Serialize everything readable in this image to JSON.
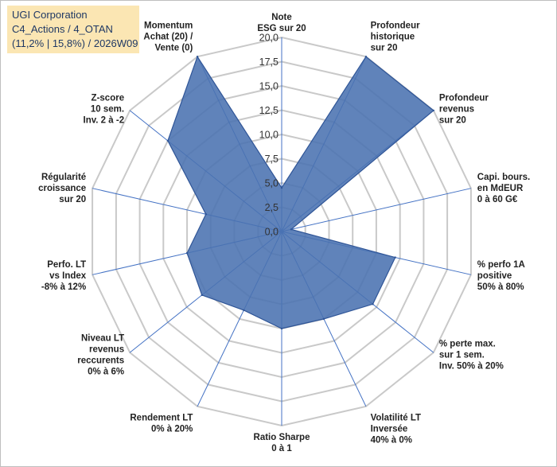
{
  "info": {
    "line1": "UGI Corporation",
    "line2": "C4_Actions / 4_OTAN",
    "line3": "(11,2% | 15,8%) / 2026W09"
  },
  "chart_data": {
    "type": "radar",
    "scale_min": 0,
    "scale_max": 20,
    "tick_step": 2.5,
    "tick_labels": [
      "0,0",
      "2,5",
      "5,0",
      "7,5",
      "10,0",
      "12,5",
      "15,0",
      "17,5",
      "20,0"
    ],
    "grid": true,
    "colors": {
      "fill": "#4a72b0",
      "stroke": "#2f5597",
      "grid": "#c9c9c9",
      "spoke": "#4472c4"
    },
    "axes": [
      {
        "label": [
          "Note",
          "ESG sur 20"
        ],
        "value": 4.5
      },
      {
        "label": [
          "Profondeur",
          "historique",
          "sur 20"
        ],
        "value": 20
      },
      {
        "label": [
          "Profondeur",
          "revenus",
          "sur 20"
        ],
        "value": 20
      },
      {
        "label": [
          "Capi. bours.",
          "en MdEUR",
          "0 à 60 G€"
        ],
        "value": 1.0
      },
      {
        "label": [
          "% perfo 1A",
          "positive",
          "50% à 80%"
        ],
        "value": 12
      },
      {
        "label": [
          "% perte max.",
          "sur 1 sem.",
          "Inv. 50% à 20%"
        ],
        "value": 12
      },
      {
        "label": [
          "Volatilité LT",
          "Inversée",
          "40% à 0%"
        ],
        "value": 10
      },
      {
        "label": [
          "Ratio Sharpe",
          "0 à 1"
        ],
        "value": 10
      },
      {
        "label": [
          "Rendement LT",
          "0% à 20%"
        ],
        "value": 9
      },
      {
        "label": [
          "Niveau LT",
          "revenus",
          "reccurents",
          "0% à 6%"
        ],
        "value": 10.5
      },
      {
        "label": [
          "Perfo. LT",
          "vs Index",
          "-8% à 12%"
        ],
        "value": 10
      },
      {
        "label": [
          "Régularité",
          "croissance",
          "sur 20"
        ],
        "value": 8
      },
      {
        "label": [
          "Z-score",
          "10 sem.",
          "Inv. 2 à -2"
        ],
        "value": 15
      },
      {
        "label": [
          "Momentum",
          "Achat (20) /",
          "Vente (0)"
        ],
        "value": 20
      }
    ]
  }
}
